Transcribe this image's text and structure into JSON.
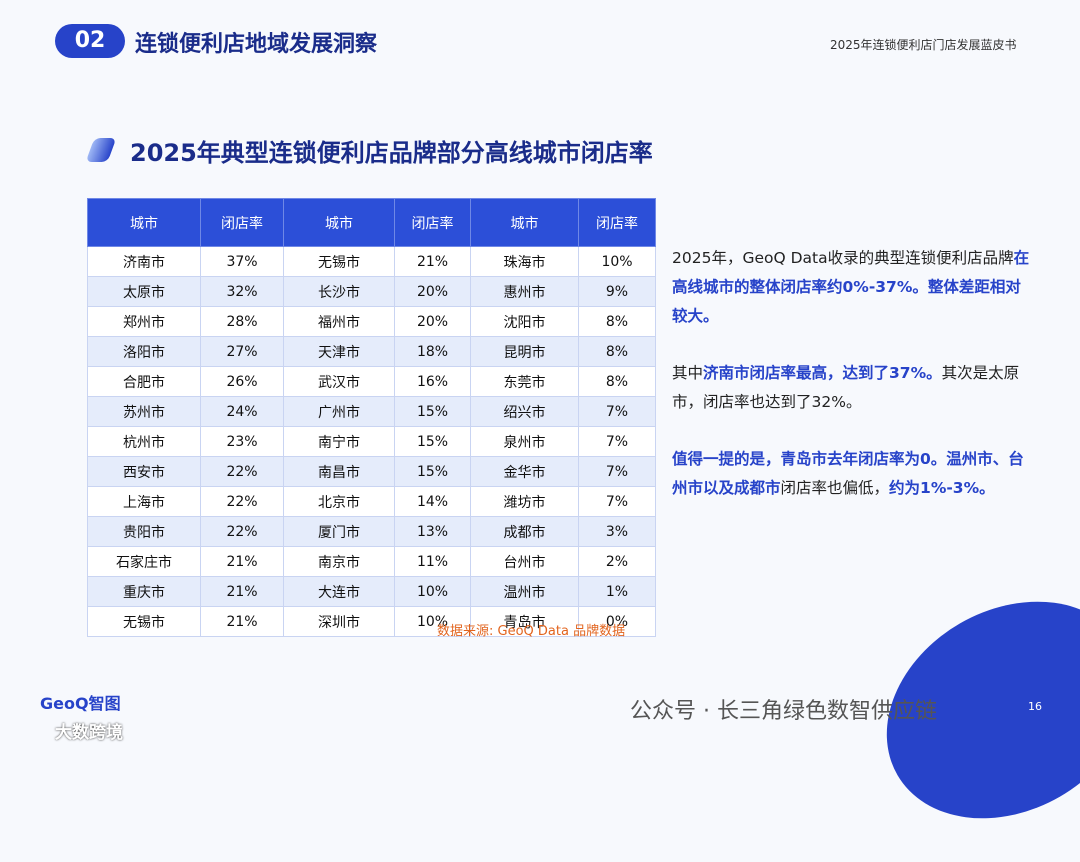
{
  "header": {
    "section_number": "02",
    "section_title": "连锁便利店地域发展洞察",
    "report_title": "2025年连锁便利店门店发展蓝皮书"
  },
  "slide_title": "2025年典型连锁便利店品牌部分高线城市闭店率",
  "table": {
    "columns": [
      "城市",
      "闭店率",
      "城市",
      "闭店率",
      "城市",
      "闭店率"
    ],
    "rows": [
      [
        "济南市",
        "37%",
        "无锡市",
        "21%",
        "珠海市",
        "10%"
      ],
      [
        "太原市",
        "32%",
        "长沙市",
        "20%",
        "惠州市",
        "9%"
      ],
      [
        "郑州市",
        "28%",
        "福州市",
        "20%",
        "沈阳市",
        "8%"
      ],
      [
        "洛阳市",
        "27%",
        "天津市",
        "18%",
        "昆明市",
        "8%"
      ],
      [
        "合肥市",
        "26%",
        "武汉市",
        "16%",
        "东莞市",
        "8%"
      ],
      [
        "苏州市",
        "24%",
        "广州市",
        "15%",
        "绍兴市",
        "7%"
      ],
      [
        "杭州市",
        "23%",
        "南宁市",
        "15%",
        "泉州市",
        "7%"
      ],
      [
        "西安市",
        "22%",
        "南昌市",
        "15%",
        "金华市",
        "7%"
      ],
      [
        "上海市",
        "22%",
        "北京市",
        "14%",
        "潍坊市",
        "7%"
      ],
      [
        "贵阳市",
        "22%",
        "厦门市",
        "13%",
        "成都市",
        "3%"
      ],
      [
        "石家庄市",
        "21%",
        "南京市",
        "11%",
        "台州市",
        "2%"
      ],
      [
        "重庆市",
        "21%",
        "大连市",
        "10%",
        "温州市",
        "1%"
      ],
      [
        "无锡市",
        "21%",
        "深圳市",
        "10%",
        "青岛市",
        "0%"
      ]
    ]
  },
  "source": "数据来源: GeoQ Data 品牌数据",
  "paragraphs": [
    [
      {
        "text": "2025年，GeoQ Data收录的典型连锁便利店品牌",
        "highlight": false
      },
      {
        "text": "在高线城市的整体闭店率约0%-37%。整体差距相对较大。",
        "highlight": true
      }
    ],
    [
      {
        "text": "其中",
        "highlight": false
      },
      {
        "text": "济南市闭店率最高，达到了37%。",
        "highlight": true
      },
      {
        "text": "其次是太原市，闭店率也达到了32%。",
        "highlight": false
      }
    ],
    [
      {
        "text": "值得一提的是，青岛市去年闭店率为0。温州市、台州市以及成都市",
        "highlight": true
      },
      {
        "text": "闭店率也偏低，",
        "highlight": false
      },
      {
        "text": "约为1%-3%。",
        "highlight": true
      }
    ]
  ],
  "footer": {
    "logo": "GeoQ智图",
    "watermark": "公众号 · 长三角绿色数智供应链",
    "page": "16",
    "corner_mark": "大数跨境"
  }
}
